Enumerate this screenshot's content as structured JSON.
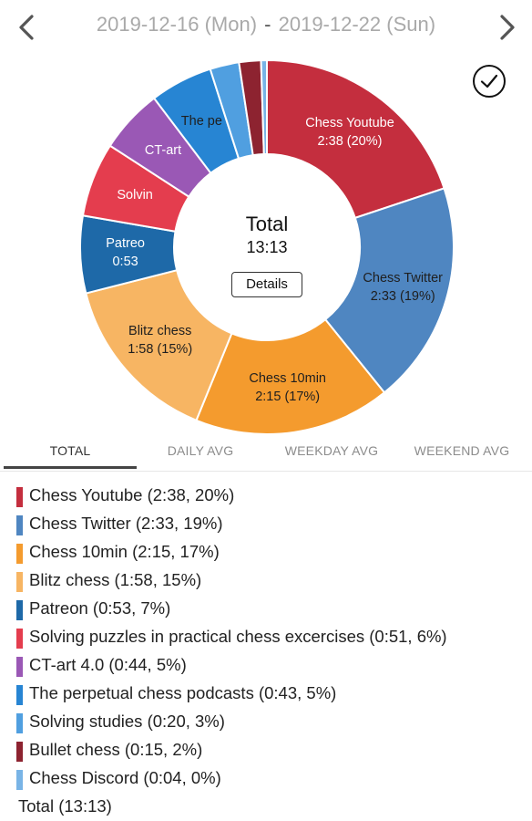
{
  "header": {
    "start_date": "2019-12-16 (Mon)",
    "separator": "-",
    "end_date": "2019-12-22 (Sun)",
    "prev_icon": "chevron-left-icon",
    "next_icon": "chevron-right-icon"
  },
  "check_icon": "check-circle-icon",
  "chart": {
    "center_title": "Total",
    "center_total": "13:13",
    "details_label": "Details"
  },
  "chart_data": {
    "type": "pie",
    "total": "13:13",
    "series": [
      {
        "name": "Chess Youtube",
        "time": "2:38",
        "minutes": 158,
        "percent": 20,
        "color": "#c42e3e",
        "slice_label": [
          "Chess Youtube",
          "2:38 (20%)"
        ]
      },
      {
        "name": "Chess Twitter",
        "time": "2:33",
        "minutes": 153,
        "percent": 19,
        "color": "#4f86c1",
        "slice_label": [
          "Chess Twitter",
          "2:33 (19%)"
        ]
      },
      {
        "name": "Chess 10min",
        "time": "2:15",
        "minutes": 135,
        "percent": 17,
        "color": "#f49b2e",
        "slice_label": [
          "Chess 10min",
          "2:15 (17%)"
        ]
      },
      {
        "name": "Blitz chess",
        "time": "1:58",
        "minutes": 118,
        "percent": 15,
        "color": "#f7b563",
        "slice_label": [
          "Blitz chess",
          "1:58 (15%)"
        ]
      },
      {
        "name": "Patreon",
        "time": "0:53",
        "minutes": 53,
        "percent": 7,
        "color": "#1e69a8",
        "slice_label": [
          "Patreo",
          "0:53"
        ]
      },
      {
        "name": "Solving puzzles in practical chess excercises",
        "time": "0:51",
        "minutes": 51,
        "percent": 6,
        "color": "#e43d4e",
        "slice_label": [
          "Solvin"
        ]
      },
      {
        "name": "CT-art 4.0",
        "time": "0:44",
        "minutes": 44,
        "percent": 5,
        "color": "#9a58b5",
        "slice_label": [
          "CT-art"
        ]
      },
      {
        "name": "The perpetual chess podcasts",
        "time": "0:43",
        "minutes": 43,
        "percent": 5,
        "color": "#2785d3",
        "slice_label": [
          "The pe"
        ]
      },
      {
        "name": "Solving studies",
        "time": "0:20",
        "minutes": 20,
        "percent": 3,
        "color": "#509fe0",
        "slice_label": []
      },
      {
        "name": "Bullet chess",
        "time": "0:15",
        "minutes": 15,
        "percent": 2,
        "color": "#8d2330",
        "slice_label": []
      },
      {
        "name": "Chess Discord",
        "time": "0:04",
        "minutes": 4,
        "percent": 0,
        "color": "#79b4e6",
        "slice_label": []
      }
    ]
  },
  "tabs": [
    {
      "label": "TOTAL",
      "active": true
    },
    {
      "label": "DAILY AVG",
      "active": false
    },
    {
      "label": "WEEKDAY AVG",
      "active": false
    },
    {
      "label": "WEEKEND AVG",
      "active": false
    }
  ],
  "legend": [
    {
      "text": "Chess Youtube (2:38, 20%)",
      "color": "#c42e3e"
    },
    {
      "text": "Chess Twitter (2:33, 19%)",
      "color": "#4f86c1"
    },
    {
      "text": "Chess 10min (2:15, 17%)",
      "color": "#f49b2e"
    },
    {
      "text": "Blitz chess (1:58, 15%)",
      "color": "#f7b563"
    },
    {
      "text": "Patreon (0:53, 7%)",
      "color": "#1e69a8"
    },
    {
      "text": "Solving puzzles in practical chess excercises (0:51, 6%)",
      "color": "#e43d4e"
    },
    {
      "text": "CT-art 4.0 (0:44, 5%)",
      "color": "#9a58b5"
    },
    {
      "text": "The perpetual chess podcasts (0:43, 5%)",
      "color": "#2785d3"
    },
    {
      "text": "Solving studies (0:20, 3%)",
      "color": "#509fe0"
    },
    {
      "text": "Bullet chess (0:15, 2%)",
      "color": "#8d2330"
    },
    {
      "text": "Chess Discord (0:04, 0%)",
      "color": "#79b4e6"
    }
  ],
  "total_row": "Total (13:13)"
}
